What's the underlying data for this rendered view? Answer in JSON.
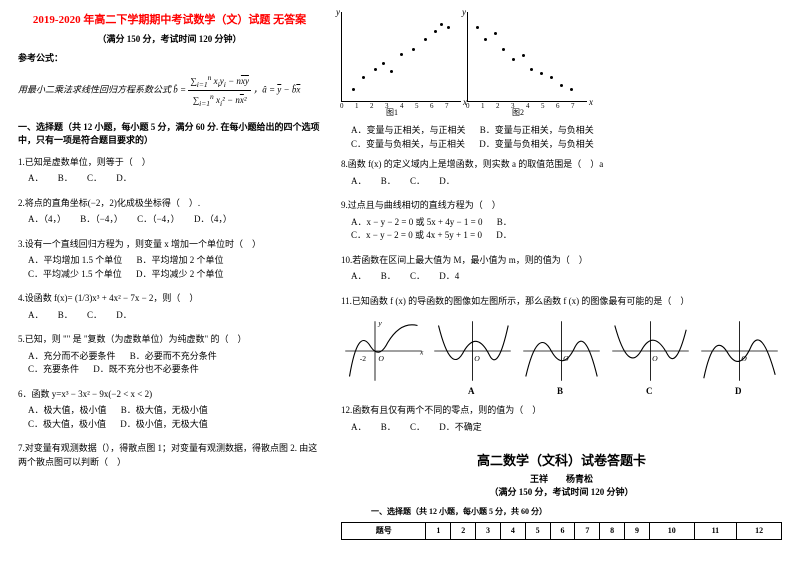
{
  "header": {
    "title": "2019-2020 年高二下学期期中考试数学（文）试题 无答案",
    "subtitle": "（满分 150 分，考试时间 120 分钟）",
    "ref": "参考公式：",
    "formula_lead": "用最小二乘法求线性回归方程系数公式"
  },
  "section1": "一、选择题（共 12 小题，每小题 5 分，满分 60 分. 在每小题给出的四个选项中，只有一项是符合题目要求的）",
  "q1": {
    "text": "1.已知是虚数单位，则等于（　）",
    "a": "A．",
    "b": "B．",
    "c": "C．",
    "d": "D．"
  },
  "q2": {
    "text": "2.将点的直角坐标(−2，2)化成极坐标得（　）.",
    "a": "A．（4，）",
    "b": "B．（−4，）",
    "c": "C．（−4，）",
    "d": "D．（4，）"
  },
  "q3": {
    "text": "3.设有一个直线回归方程为 ，则变量 x 增加一个单位时（　）",
    "a": "A．平均增加 1.5 个单位",
    "b": "B．平均增加 2 个单位",
    "c": "C．平均减少 1.5 个单位",
    "d": "D．平均减少 2 个单位"
  },
  "q4": {
    "text": "4.设函数 f(x)= (1/3)x³ + 4x² − 7x − 2，则（　）",
    "a": "A．",
    "b": "B．",
    "c": "C．",
    "d": "D．"
  },
  "q5": {
    "text": "5.已知，则 \"\" 是 \"复数（为虚数单位）为纯虚数\" 的（　）",
    "a": "A．充分而不必要条件",
    "b": "B．必要而不充分条件",
    "c": "C．充要条件",
    "d": "D．既不充分也不必要条件"
  },
  "q6": {
    "text": "6．函数 y=x³ − 3x² − 9x(−2 < x < 2)",
    "a": "A．极大值，极小值",
    "b": "B．极大值，无极小值",
    "c": "C．极大值，极小值",
    "d": "D．极小值，无极大值"
  },
  "q7": {
    "text": "7.对变量有观测数据（），得散点图 1；对变量有观测数据，得散点图 2. 由这两个散点图可以判断（　）"
  },
  "q7opts": {
    "a": "A．变量与正相关，与正相关",
    "b": "B．变量与正相关，与负相关",
    "c": "C．变量与负相关，与正相关",
    "d": "D．变量与负相关，与负相关"
  },
  "q8": {
    "text": "8.函数 f(x) 的定义域内上是增函数，则实数 a 的取值范围是（　）a",
    "a": "A．",
    "b": "B．",
    "c": "C．",
    "d": "D．"
  },
  "q9": {
    "text": "9.过点且与曲线相切的直线方程为（　）",
    "a": "A．x − y − 2 = 0 或 5x + 4y − 1 = 0",
    "b": "B．",
    "c": "C．x − y − 2 = 0 或 4x + 5y + 1 = 0",
    "d": "D．"
  },
  "q10": {
    "text": "10.若函数在区间上最大值为 M，最小值为 m，则的值为（　）",
    "a": "A．",
    "b": "B．",
    "c": "C．",
    "d": "D．4"
  },
  "q11": {
    "text": "11.已知函数 f (x) 的导函数的图像如左图所示，那么函数 f (x) 的图像最有可能的是（　）"
  },
  "q12": {
    "text": "12.函数有且仅有两个不同的零点，则的值为（　）",
    "a": "A．",
    "b": "B．",
    "c": "C．",
    "d": "D．不确定"
  },
  "answer_sheet": {
    "title": "高二数学（文科）试卷答题卡",
    "names": "王祥　　杨青松",
    "sub": "（满分 150 分，考试时间 120 分钟）",
    "sec": "一、选择题（共 12 小题，每小题 5 分，共 60 分）",
    "rowhead": "题号",
    "cols": [
      "1",
      "2",
      "3",
      "4",
      "5",
      "6",
      "7",
      "8",
      "9",
      "10",
      "11",
      "12"
    ]
  },
  "fig1_label": "图1",
  "fig2_label": "图2",
  "scatter1": {
    "xticks": [
      "0",
      "1",
      "2",
      "3",
      "4",
      "5",
      "6",
      "7"
    ],
    "points": [
      [
        10,
        10
      ],
      [
        20,
        22
      ],
      [
        32,
        30
      ],
      [
        40,
        36
      ],
      [
        48,
        28
      ],
      [
        58,
        45
      ],
      [
        70,
        50
      ],
      [
        82,
        60
      ],
      [
        92,
        68
      ],
      [
        98,
        75
      ],
      [
        105,
        72
      ]
    ]
  },
  "scatter2": {
    "xticks": [
      "0",
      "1",
      "2",
      "3",
      "4",
      "5",
      "6",
      "7"
    ],
    "points": [
      [
        8,
        72
      ],
      [
        16,
        60
      ],
      [
        26,
        66
      ],
      [
        34,
        50
      ],
      [
        44,
        40
      ],
      [
        54,
        44
      ],
      [
        62,
        30
      ],
      [
        72,
        26
      ],
      [
        82,
        22
      ],
      [
        92,
        14
      ],
      [
        102,
        10
      ]
    ]
  },
  "curveLabels": [
    "A",
    "B",
    "C",
    "D"
  ],
  "colors": {
    "title": "#ff0000",
    "text": "#000000",
    "bg": "#ffffff"
  }
}
